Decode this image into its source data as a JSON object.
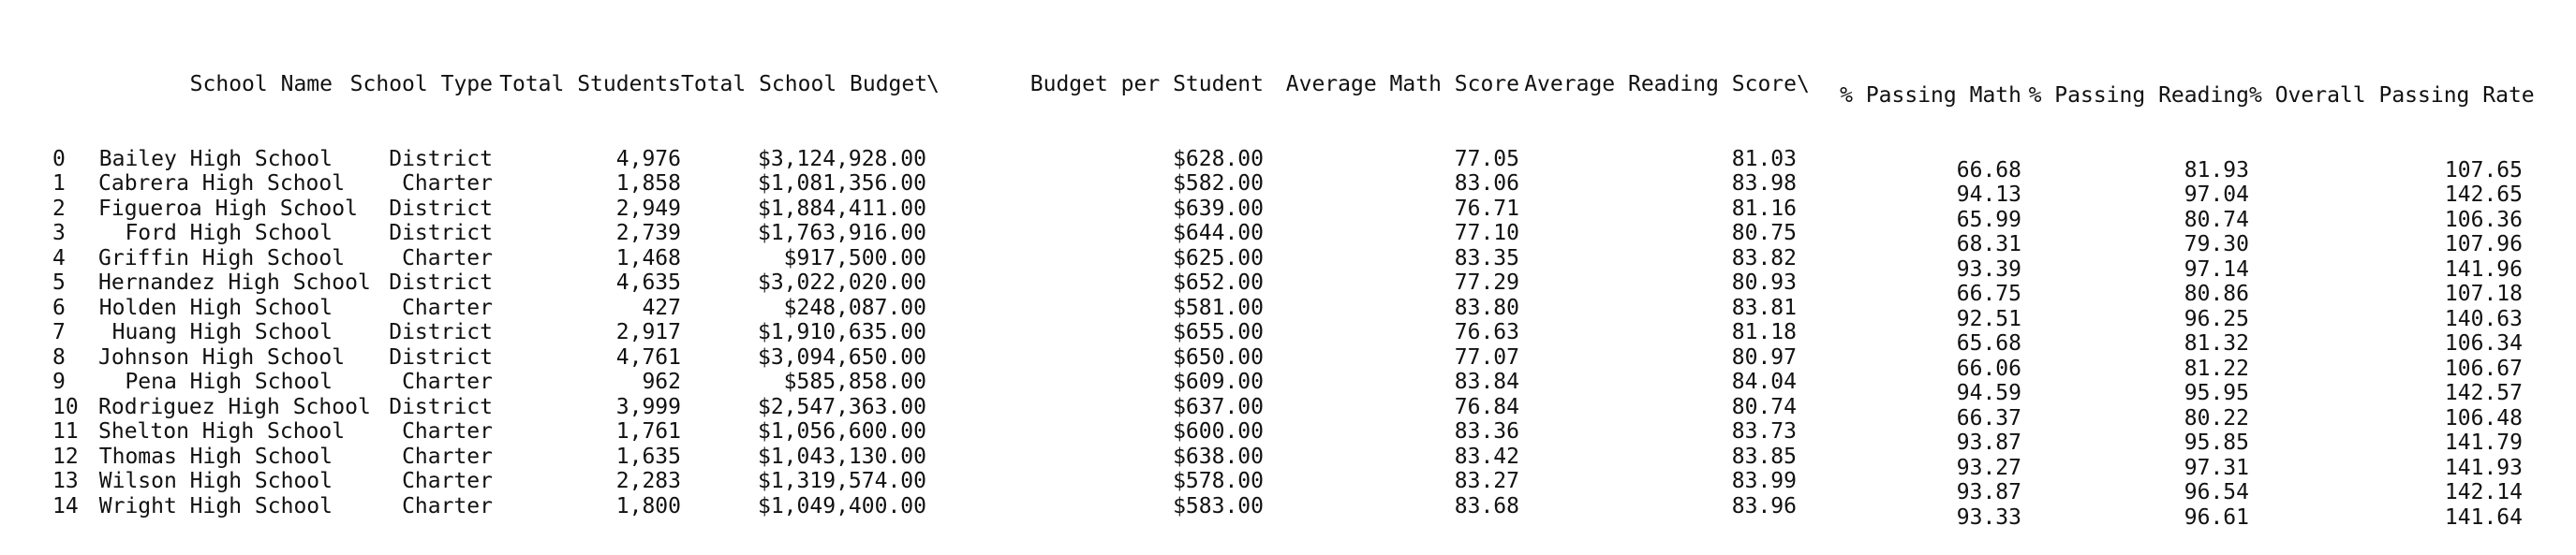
{
  "table": {
    "block1": {
      "headers": [
        "",
        "School Name",
        "School Type",
        "Total Students",
        "Total School Budget",
        "\\"
      ],
      "rows": [
        [
          "0",
          "Bailey High School",
          "District",
          "4,976",
          "$3,124,928.00",
          ""
        ],
        [
          "1",
          "Cabrera High School",
          "Charter",
          "1,858",
          "$1,081,356.00",
          ""
        ],
        [
          "2",
          "Figueroa High School",
          "District",
          "2,949",
          "$1,884,411.00",
          ""
        ],
        [
          "3",
          "Ford High School",
          "District",
          "2,739",
          "$1,763,916.00",
          ""
        ],
        [
          "4",
          "Griffin High School",
          "Charter",
          "1,468",
          "$917,500.00",
          ""
        ],
        [
          "5",
          "Hernandez High School",
          "District",
          "4,635",
          "$3,022,020.00",
          ""
        ],
        [
          "6",
          "Holden High School",
          "Charter",
          "427",
          "$248,087.00",
          ""
        ],
        [
          "7",
          "Huang High School",
          "District",
          "2,917",
          "$1,910,635.00",
          ""
        ],
        [
          "8",
          "Johnson High School",
          "District",
          "4,761",
          "$3,094,650.00",
          ""
        ],
        [
          "9",
          "Pena High School",
          "Charter",
          "962",
          "$585,858.00",
          ""
        ],
        [
          "10",
          "Rodriguez High School",
          "District",
          "3,999",
          "$2,547,363.00",
          ""
        ],
        [
          "11",
          "Shelton High School",
          "Charter",
          "1,761",
          "$1,056,600.00",
          ""
        ],
        [
          "12",
          "Thomas High School",
          "Charter",
          "1,635",
          "$1,043,130.00",
          ""
        ],
        [
          "13",
          "Wilson High School",
          "Charter",
          "2,283",
          "$1,319,574.00",
          ""
        ],
        [
          "14",
          "Wright High School",
          "Charter",
          "1,800",
          "$1,049,400.00",
          ""
        ]
      ]
    },
    "block2": {
      "headers": [
        "Budget per Student",
        "Average Math Score",
        "Average Reading Score",
        "\\"
      ],
      "rows": [
        [
          "$628.00",
          "77.05",
          "81.03",
          ""
        ],
        [
          "$582.00",
          "83.06",
          "83.98",
          ""
        ],
        [
          "$639.00",
          "76.71",
          "81.16",
          ""
        ],
        [
          "$644.00",
          "77.10",
          "80.75",
          ""
        ],
        [
          "$625.00",
          "83.35",
          "83.82",
          ""
        ],
        [
          "$652.00",
          "77.29",
          "80.93",
          ""
        ],
        [
          "$581.00",
          "83.80",
          "83.81",
          ""
        ],
        [
          "$655.00",
          "76.63",
          "81.18",
          ""
        ],
        [
          "$650.00",
          "77.07",
          "80.97",
          ""
        ],
        [
          "$609.00",
          "83.84",
          "84.04",
          ""
        ],
        [
          "$637.00",
          "76.84",
          "80.74",
          ""
        ],
        [
          "$600.00",
          "83.36",
          "83.73",
          ""
        ],
        [
          "$638.00",
          "83.42",
          "83.85",
          ""
        ],
        [
          "$578.00",
          "83.27",
          "83.99",
          ""
        ],
        [
          "$583.00",
          "83.68",
          "83.96",
          ""
        ]
      ]
    },
    "block3": {
      "headers": [
        "% Passing Math",
        "% Passing Reading",
        "% Overall Passing Rate"
      ],
      "rows": [
        [
          "66.68",
          "81.93",
          "107.65"
        ],
        [
          "94.13",
          "97.04",
          "142.65"
        ],
        [
          "65.99",
          "80.74",
          "106.36"
        ],
        [
          "68.31",
          "79.30",
          "107.96"
        ],
        [
          "93.39",
          "97.14",
          "141.96"
        ],
        [
          "66.75",
          "80.86",
          "107.18"
        ],
        [
          "92.51",
          "96.25",
          "140.63"
        ],
        [
          "65.68",
          "81.32",
          "106.34"
        ],
        [
          "66.06",
          "81.22",
          "106.67"
        ],
        [
          "94.59",
          "95.95",
          "142.57"
        ],
        [
          "66.37",
          "80.22",
          "106.48"
        ],
        [
          "93.87",
          "95.85",
          "141.79"
        ],
        [
          "93.27",
          "97.31",
          "141.93"
        ],
        [
          "93.87",
          "96.54",
          "142.14"
        ],
        [
          "93.33",
          "96.61",
          "141.64"
        ]
      ]
    }
  }
}
